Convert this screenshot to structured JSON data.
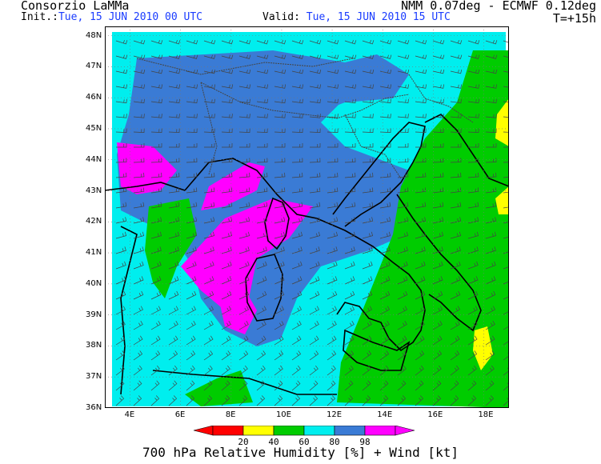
{
  "header": {
    "title_left": "Consorzio LaMMa",
    "title_right": "NMM 0.07deg - ECMWF 0.12deg",
    "init_label": "Init.:",
    "init_value": "Tue, 15 JUN 2010  00 UTC",
    "valid_label": "Valid:",
    "valid_value": "Tue, 15 JUN 2010  15 UTC",
    "forecast_step": "T=+15h"
  },
  "map": {
    "lat_ticks": [
      "48N",
      "47N",
      "46N",
      "45N",
      "44N",
      "43N",
      "42N",
      "41N",
      "40N",
      "39N",
      "38N",
      "37N",
      "36N"
    ],
    "lon_ticks": [
      "4E",
      "6E",
      "8E",
      "10E",
      "12E",
      "14E",
      "16E",
      "18E"
    ],
    "lat_range": [
      36,
      48.3
    ],
    "lon_range": [
      3,
      19
    ],
    "colors": {
      "rh_0_20": "#ff0000",
      "rh_20_40": "#ffff00",
      "rh_40_60": "#00cc00",
      "rh_60_80": "#00eeee",
      "rh_80_98": "#3a7bd5",
      "rh_98_plus": "#ff00ff",
      "coast": "#000000",
      "borders": "#555555",
      "wind_barbs": "#444444"
    }
  },
  "colorbar": {
    "labels": [
      "20",
      "40",
      "60",
      "80",
      "98"
    ],
    "colors": [
      "#ff0000",
      "#ffff00",
      "#00cc00",
      "#00eeee",
      "#3a7bd5",
      "#ff00ff"
    ]
  },
  "footer": {
    "caption": "700 hPa Relative Humidity [%] + Wind [kt]"
  }
}
